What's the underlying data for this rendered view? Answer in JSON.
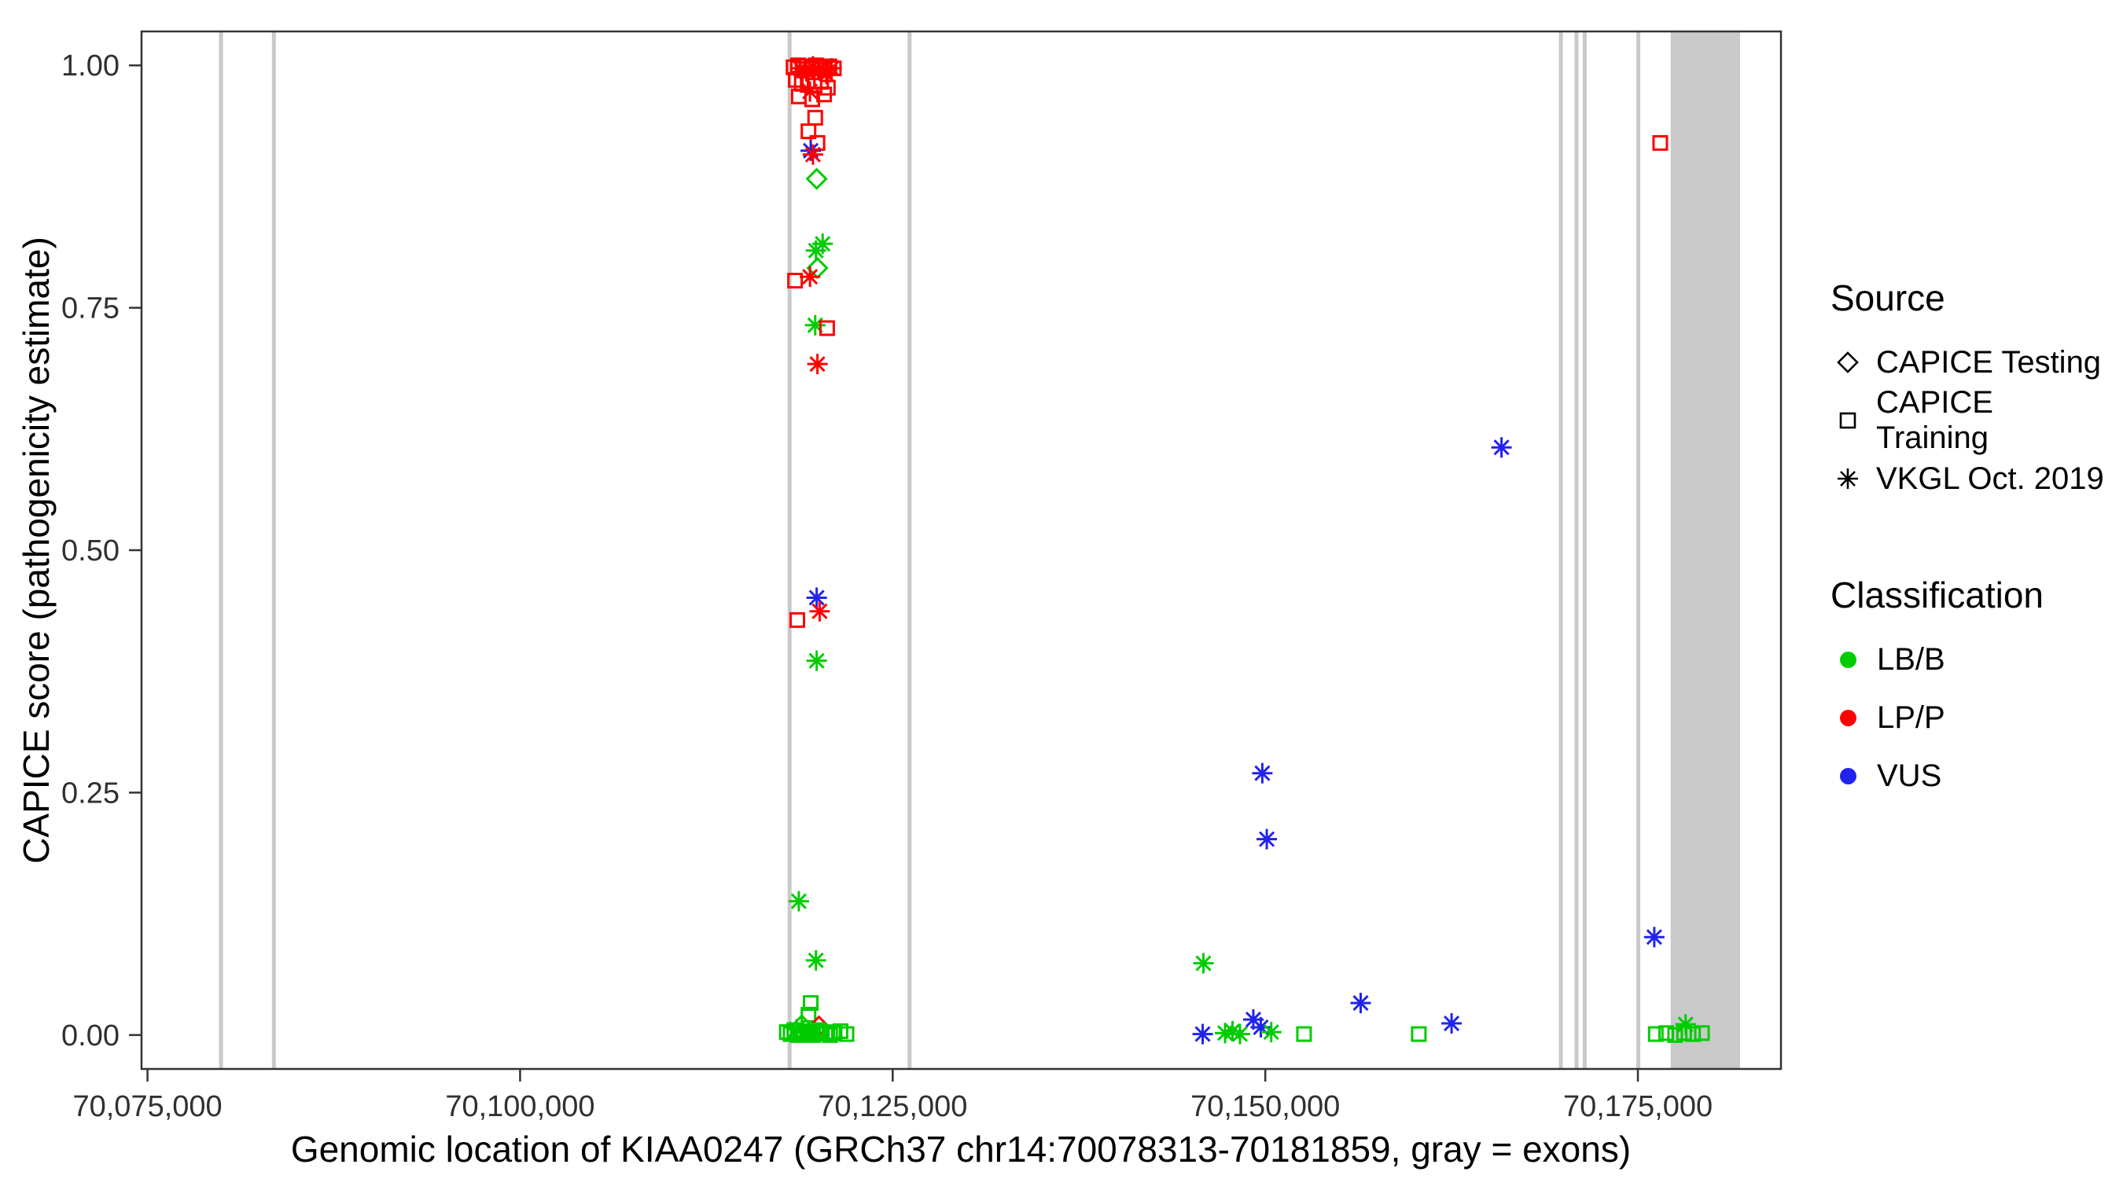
{
  "axes": {
    "x_title": "Genomic location of KIAA0247 (GRCh37 chr14:70078313-70181859, gray = exons)",
    "y_title": "CAPICE score (pathogenicity estimate)"
  },
  "legend": {
    "source_title": "Source",
    "source_items": [
      {
        "label": "CAPICE Testing",
        "shape": "diamond"
      },
      {
        "label": "CAPICE Training",
        "shape": "square"
      },
      {
        "label": "VKGL Oct. 2019",
        "shape": "asterisk"
      }
    ],
    "classification_title": "Classification",
    "classification_items": [
      {
        "label": "LB/B",
        "color": "#00CC00"
      },
      {
        "label": "LP/P",
        "color": "#FF0000"
      },
      {
        "label": "VUS",
        "color": "#2222EE"
      }
    ]
  },
  "chart_data": {
    "type": "scatter",
    "title": "",
    "xlabel": "Genomic location of KIAA0247 (GRCh37 chr14:70078313-70181859, gray = exons)",
    "ylabel": "CAPICE score (pathogenicity estimate)",
    "xlim": [
      70074600,
      70184600
    ],
    "ylim": [
      -0.035,
      1.035
    ],
    "grid": false,
    "legend_position": "right",
    "x_ticks": [
      {
        "v": 70075000,
        "label": "70,075,000"
      },
      {
        "v": 70100000,
        "label": "70,100,000"
      },
      {
        "v": 70125000,
        "label": "70,125,000"
      },
      {
        "v": 70150000,
        "label": "70,150,000"
      },
      {
        "v": 70175000,
        "label": "70,175,000"
      }
    ],
    "y_ticks": [
      {
        "v": 0.0,
        "label": "0.00"
      },
      {
        "v": 0.25,
        "label": "0.25"
      },
      {
        "v": 0.5,
        "label": "0.50"
      },
      {
        "v": 0.75,
        "label": "0.75"
      },
      {
        "v": 1.0,
        "label": "1.00"
      }
    ],
    "exon_color": "#C9C9C9",
    "colors": {
      "LB": "#00CC00",
      "LP": "#FF0000",
      "VUS": "#2222EE"
    },
    "source_shapes": {
      "test": "diamond",
      "train": "square",
      "vkgl": "asterisk"
    },
    "source_names": {
      "test": "CAPICE Testing",
      "train": "CAPICE Training",
      "vkgl": "VKGL Oct. 2019"
    },
    "class_names": {
      "LB": "LB/B",
      "LP": "LP/P",
      "VUS": "VUS"
    },
    "exons": [
      [
        70079800,
        70080050
      ],
      [
        70083350,
        70083600
      ],
      [
        70117950,
        70118200
      ],
      [
        70126000,
        70126250
      ],
      [
        70169700,
        70169950
      ],
      [
        70170750,
        70171000
      ],
      [
        70171300,
        70171550
      ],
      [
        70174900,
        70175150
      ],
      [
        70177200,
        70181859
      ]
    ],
    "points": [
      [
        70118350,
        0.998,
        "train",
        "LP"
      ],
      [
        70118650,
        1.0,
        "train",
        "LP"
      ],
      [
        70118950,
        0.996,
        "train",
        "LP"
      ],
      [
        70119250,
        0.999,
        "train",
        "LP"
      ],
      [
        70119550,
        0.997,
        "train",
        "LP"
      ],
      [
        70119850,
        1.0,
        "train",
        "LP"
      ],
      [
        70120150,
        0.998,
        "train",
        "LP"
      ],
      [
        70120450,
        0.995,
        "train",
        "LP"
      ],
      [
        70120750,
        0.999,
        "train",
        "LP"
      ],
      [
        70121050,
        0.997,
        "train",
        "LP"
      ],
      [
        70118500,
        0.985,
        "train",
        "LP"
      ],
      [
        70118900,
        0.981,
        "train",
        "LP"
      ],
      [
        70119300,
        0.984,
        "train",
        "LP"
      ],
      [
        70119750,
        0.979,
        "train",
        "LP"
      ],
      [
        70120200,
        0.983,
        "train",
        "LP"
      ],
      [
        70120650,
        0.977,
        "train",
        "LP"
      ],
      [
        70118700,
        0.968,
        "train",
        "LP"
      ],
      [
        70119600,
        0.965,
        "train",
        "LP"
      ],
      [
        70120400,
        0.97,
        "train",
        "LP"
      ],
      [
        70118800,
        0.997,
        "vkgl",
        "LP"
      ],
      [
        70119200,
        0.994,
        "vkgl",
        "LP"
      ],
      [
        70119650,
        0.999,
        "vkgl",
        "LP"
      ],
      [
        70120100,
        0.995,
        "vkgl",
        "LP"
      ],
      [
        70120550,
        0.991,
        "vkgl",
        "LP"
      ],
      [
        70120900,
        0.997,
        "vkgl",
        "LP"
      ],
      [
        70119450,
        0.973,
        "vkgl",
        "LP"
      ],
      [
        70119800,
        0.946,
        "train",
        "LP"
      ],
      [
        70119350,
        0.932,
        "train",
        "LP"
      ],
      [
        70119950,
        0.92,
        "train",
        "LP"
      ],
      [
        70119500,
        0.912,
        "vkgl",
        "VUS"
      ],
      [
        70119650,
        0.908,
        "vkgl",
        "LP"
      ],
      [
        70119900,
        0.883,
        "test",
        "LB"
      ],
      [
        70120300,
        0.816,
        "vkgl",
        "LB"
      ],
      [
        70119850,
        0.809,
        "vkgl",
        "LB"
      ],
      [
        70119950,
        0.791,
        "test",
        "LB"
      ],
      [
        70119450,
        0.782,
        "vkgl",
        "LP"
      ],
      [
        70118450,
        0.778,
        "train",
        "LP"
      ],
      [
        70119800,
        0.732,
        "vkgl",
        "LB"
      ],
      [
        70120600,
        0.729,
        "train",
        "LP"
      ],
      [
        70119950,
        0.692,
        "vkgl",
        "LP"
      ],
      [
        70119900,
        0.451,
        "vkgl",
        "VUS"
      ],
      [
        70120100,
        0.437,
        "vkgl",
        "LP"
      ],
      [
        70118600,
        0.428,
        "train",
        "LP"
      ],
      [
        70119900,
        0.386,
        "vkgl",
        "LB"
      ],
      [
        70118700,
        0.138,
        "vkgl",
        "LB"
      ],
      [
        70119850,
        0.077,
        "vkgl",
        "LB"
      ],
      [
        70119500,
        0.033,
        "train",
        "LB"
      ],
      [
        70119350,
        0.021,
        "train",
        "LB"
      ],
      [
        70120050,
        0.009,
        "test",
        "LP"
      ],
      [
        70118900,
        0.01,
        "test",
        "LB"
      ],
      [
        70118550,
        0.006,
        "vkgl",
        "LB"
      ],
      [
        70117900,
        0.003,
        "train",
        "LB"
      ],
      [
        70118150,
        0.001,
        "train",
        "LB"
      ],
      [
        70118400,
        0.005,
        "train",
        "LB"
      ],
      [
        70118650,
        0.0,
        "train",
        "LB"
      ],
      [
        70118850,
        0.002,
        "train",
        "LB"
      ],
      [
        70119050,
        0.004,
        "train",
        "LB"
      ],
      [
        70119250,
        0.001,
        "train",
        "LB"
      ],
      [
        70119450,
        0.003,
        "train",
        "LB"
      ],
      [
        70119650,
        0.0,
        "train",
        "LB"
      ],
      [
        70119850,
        0.002,
        "train",
        "LB"
      ],
      [
        70120050,
        0.005,
        "train",
        "LB"
      ],
      [
        70120250,
        0.001,
        "train",
        "LB"
      ],
      [
        70120500,
        0.003,
        "train",
        "LB"
      ],
      [
        70120800,
        0.0,
        "train",
        "LB"
      ],
      [
        70121100,
        0.002,
        "train",
        "LB"
      ],
      [
        70121500,
        0.004,
        "train",
        "LB"
      ],
      [
        70121900,
        0.001,
        "train",
        "LB"
      ],
      [
        70145850,
        0.074,
        "vkgl",
        "LB"
      ],
      [
        70149800,
        0.27,
        "vkgl",
        "VUS"
      ],
      [
        70150100,
        0.202,
        "vkgl",
        "VUS"
      ],
      [
        70165850,
        0.606,
        "vkgl",
        "VUS"
      ],
      [
        70156400,
        0.033,
        "vkgl",
        "VUS"
      ],
      [
        70162500,
        0.012,
        "vkgl",
        "VUS"
      ],
      [
        70145800,
        0.001,
        "vkgl",
        "VUS"
      ],
      [
        70147300,
        0.002,
        "vkgl",
        "LB"
      ],
      [
        70147800,
        0.004,
        "vkgl",
        "LB"
      ],
      [
        70148300,
        0.001,
        "vkgl",
        "LB"
      ],
      [
        70149200,
        0.016,
        "vkgl",
        "VUS"
      ],
      [
        70149700,
        0.008,
        "vkgl",
        "VUS"
      ],
      [
        70150400,
        0.003,
        "vkgl",
        "LB"
      ],
      [
        70152600,
        0.001,
        "train",
        "LB"
      ],
      [
        70160300,
        0.001,
        "train",
        "LB"
      ],
      [
        70176500,
        0.92,
        "train",
        "LP"
      ],
      [
        70176100,
        0.101,
        "vkgl",
        "VUS"
      ],
      [
        70178200,
        0.011,
        "vkgl",
        "LB"
      ],
      [
        70176200,
        0.001,
        "train",
        "LB"
      ],
      [
        70176900,
        0.002,
        "train",
        "LB"
      ],
      [
        70177500,
        0.0,
        "train",
        "LB"
      ],
      [
        70178100,
        0.002,
        "train",
        "LB"
      ],
      [
        70178700,
        0.001,
        "train",
        "LB"
      ],
      [
        70179300,
        0.002,
        "train",
        "LB"
      ]
    ]
  }
}
